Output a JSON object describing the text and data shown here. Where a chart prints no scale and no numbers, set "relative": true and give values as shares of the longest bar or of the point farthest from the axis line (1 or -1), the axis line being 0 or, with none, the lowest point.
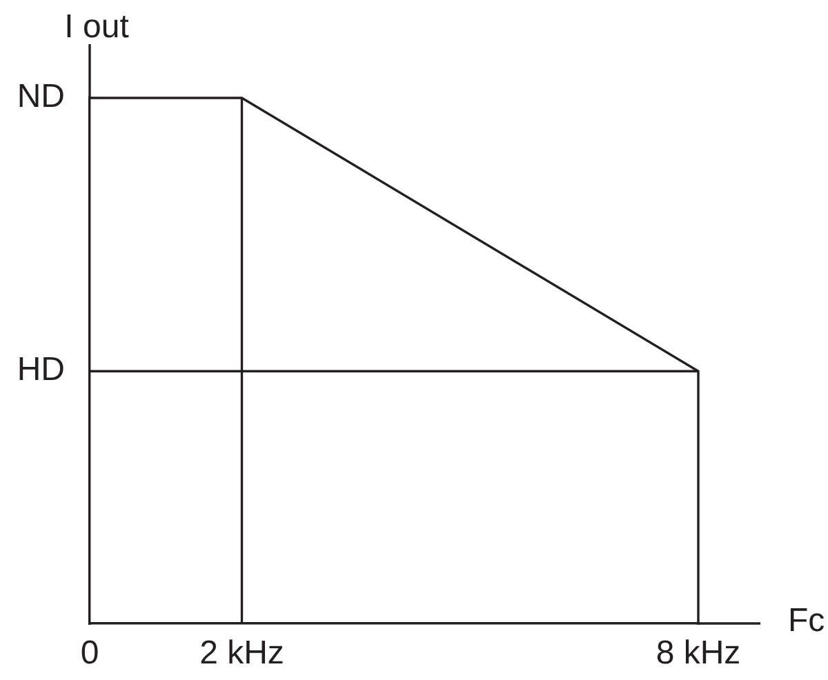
{
  "chart_data": {
    "type": "line",
    "xlabel": "Fc",
    "ylabel": "I out",
    "relative": true,
    "xlim": [
      0,
      8
    ],
    "xticks": [
      0,
      {
        "value": 2,
        "label": "2 kHz"
      },
      {
        "value": 8,
        "label": "8 kHz"
      }
    ],
    "annotations": [
      {
        "text": "ND",
        "x": 0,
        "y": 1
      }
    ],
    "ref_lines": [
      {
        "axis": "x",
        "value": 2,
        "color": "#231f20"
      },
      {
        "axis": "y",
        "value": 0.48,
        "label": "HD",
        "color": "#231f20"
      }
    ],
    "series": [
      {
        "color": "#231f20",
        "x": [
          0,
          2,
          8,
          8
        ],
        "values": [
          1,
          1,
          0.48,
          0
        ]
      }
    ]
  }
}
